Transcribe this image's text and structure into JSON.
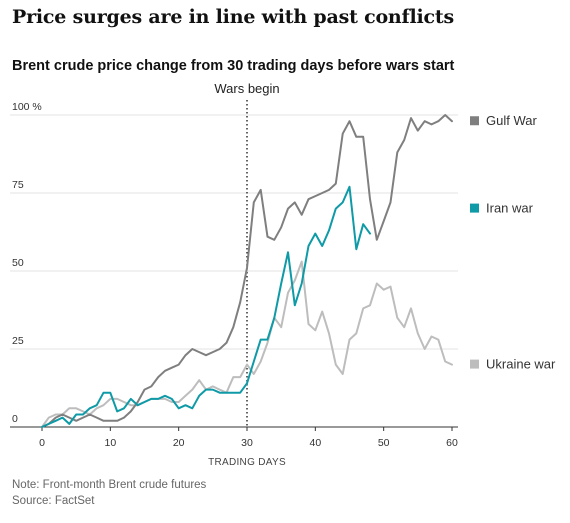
{
  "headline": "Price surges are in line with past conflicts",
  "chart_data": {
    "type": "line",
    "title": "Brent crude price change from 30 trading days before wars start",
    "xlabel": "TRADING DAYS",
    "ylabel": "",
    "xlim": [
      0,
      60
    ],
    "ylim": [
      0,
      100
    ],
    "x_ticks": [
      0,
      10,
      20,
      30,
      40,
      50,
      60
    ],
    "y_ticks": [
      {
        "value": 0,
        "label": "0"
      },
      {
        "value": 25,
        "label": "25"
      },
      {
        "value": 50,
        "label": "50"
      },
      {
        "value": 75,
        "label": "75"
      },
      {
        "value": 100,
        "label": "100 %"
      }
    ],
    "grid": "horizontal",
    "annotation": {
      "x": 30,
      "label": "Wars begin"
    },
    "colors": {
      "Gulf War": "#7f7f7f",
      "Iran war": "#0e9aa7",
      "Ukraine war": "#bdbdbd",
      "grid": "#e3e3e3",
      "axis": "#333333"
    },
    "series": [
      {
        "name": "Gulf War",
        "label_y": 98,
        "x": [
          0,
          1,
          2,
          3,
          4,
          5,
          6,
          7,
          8,
          9,
          10,
          11,
          12,
          13,
          14,
          15,
          16,
          17,
          18,
          19,
          20,
          21,
          22,
          23,
          24,
          25,
          26,
          27,
          28,
          29,
          30,
          31,
          32,
          33,
          34,
          35,
          36,
          37,
          38,
          39,
          40,
          41,
          42,
          43,
          44,
          45,
          46,
          47,
          48,
          49,
          50,
          51,
          52,
          53,
          54,
          55,
          56,
          57,
          58,
          59,
          60
        ],
        "values": [
          0,
          1,
          3,
          4,
          3,
          2,
          3,
          4,
          3,
          2,
          2,
          2,
          3,
          5,
          8,
          12,
          13,
          16,
          18,
          19,
          20,
          23,
          25,
          24,
          23,
          24,
          25,
          27,
          32,
          40,
          51,
          72,
          76,
          61,
          60,
          64,
          70,
          72,
          68,
          73,
          74,
          75,
          76,
          78,
          94,
          98,
          93,
          93,
          73,
          60,
          66,
          72,
          88,
          92,
          99,
          95,
          98,
          97,
          98,
          100,
          98
        ]
      },
      {
        "name": "Iran war",
        "label_y": 70,
        "x": [
          0,
          1,
          2,
          3,
          4,
          5,
          6,
          7,
          8,
          9,
          10,
          11,
          12,
          13,
          14,
          15,
          16,
          17,
          18,
          19,
          20,
          21,
          22,
          23,
          24,
          25,
          26,
          27,
          28,
          29,
          30,
          31,
          32,
          33,
          34,
          35,
          36,
          37,
          38,
          39,
          40,
          41,
          42,
          43,
          44,
          45,
          46,
          47,
          48
        ],
        "values": [
          0,
          1,
          2,
          3,
          1,
          4,
          4,
          6,
          7,
          11,
          11,
          5,
          6,
          9,
          7,
          8,
          9,
          9,
          10,
          9,
          6,
          7,
          6,
          10,
          12,
          12,
          11,
          11,
          11,
          11,
          14,
          21,
          28,
          28,
          35,
          46,
          56,
          39,
          46,
          58,
          62,
          58,
          63,
          70,
          72,
          77,
          57,
          65,
          62
        ]
      },
      {
        "name": "Ukraine war",
        "label_y": 20,
        "x": [
          0,
          1,
          2,
          3,
          4,
          5,
          6,
          7,
          8,
          9,
          10,
          11,
          12,
          13,
          14,
          15,
          16,
          17,
          18,
          19,
          20,
          21,
          22,
          23,
          24,
          25,
          26,
          27,
          28,
          29,
          30,
          31,
          32,
          33,
          34,
          35,
          36,
          37,
          38,
          39,
          40,
          41,
          42,
          43,
          44,
          45,
          46,
          47,
          48,
          49,
          50,
          51,
          52,
          53,
          54,
          55,
          56,
          57,
          58,
          59,
          60
        ],
        "values": [
          0,
          3,
          4,
          4,
          6,
          6,
          5,
          4,
          6,
          7,
          9,
          9,
          8,
          7,
          7,
          8,
          9,
          9,
          9,
          8,
          8,
          10,
          12,
          15,
          12,
          13,
          12,
          11,
          16,
          16,
          20,
          17,
          21,
          27,
          35,
          32,
          43,
          47,
          53,
          33,
          31,
          37,
          30,
          20,
          17,
          28,
          30,
          38,
          39,
          46,
          44,
          45,
          35,
          32,
          38,
          30,
          25,
          29,
          28,
          21,
          20
        ]
      }
    ]
  },
  "notes": {
    "note": "Note: Front-month Brent crude futures",
    "source": "Source: FactSet"
  }
}
